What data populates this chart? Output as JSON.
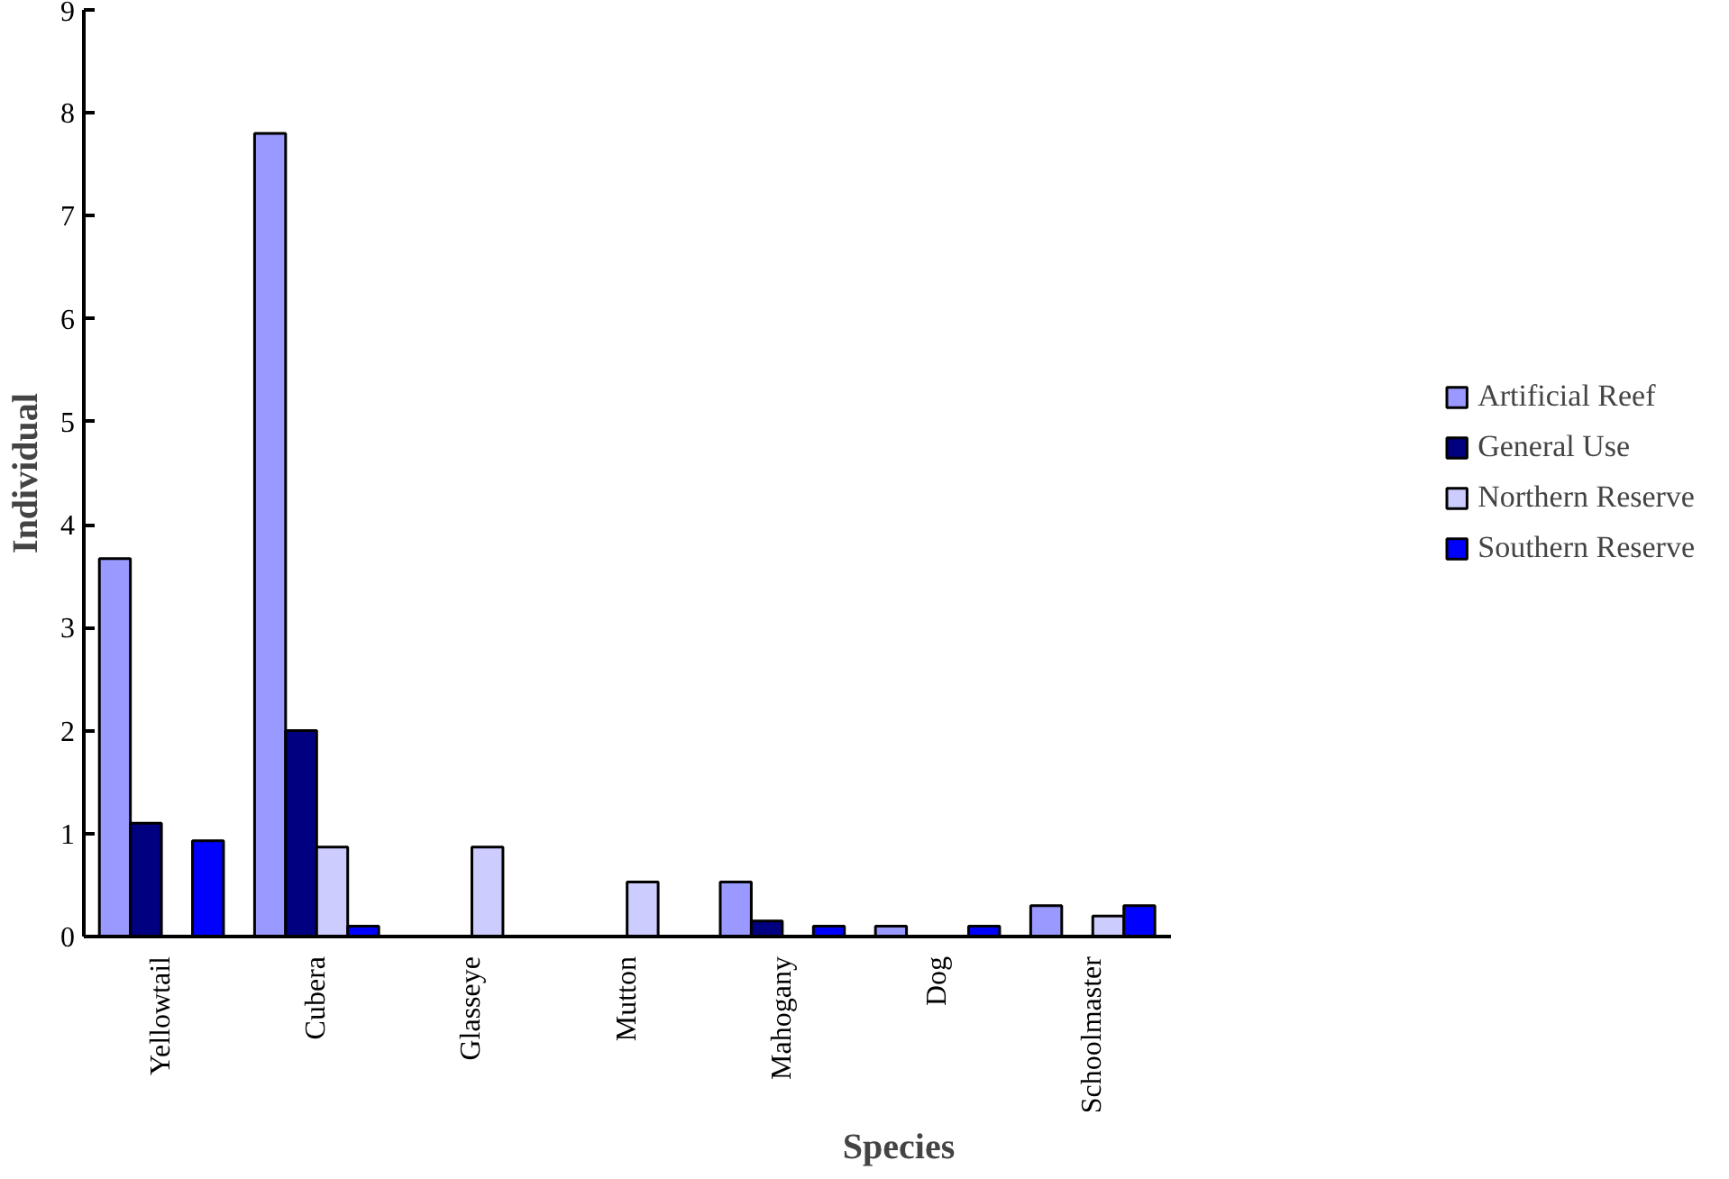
{
  "chart_data": {
    "type": "bar",
    "xlabel": "Species",
    "ylabel": "Individual",
    "categories": [
      "Yellowtail",
      "Cubera",
      "Glasseye",
      "Mutton",
      "Mahogany",
      "Dog",
      "Schoolmaster"
    ],
    "series": [
      {
        "name": "Artificial Reef",
        "color": "#9999ff",
        "values": [
          3.67,
          7.8,
          null,
          null,
          0.53,
          0.1,
          0.3
        ]
      },
      {
        "name": "General Use",
        "color": "#000080",
        "values": [
          1.1,
          2.0,
          null,
          null,
          0.15,
          null,
          null
        ]
      },
      {
        "name": "Northern Reserve",
        "color": "#ccccff",
        "values": [
          null,
          0.87,
          0.87,
          0.53,
          null,
          null,
          0.2
        ]
      },
      {
        "name": "Southern Reserve",
        "color": "#0000ff",
        "values": [
          0.93,
          0.1,
          null,
          null,
          0.1,
          0.1,
          0.3
        ]
      }
    ],
    "ylim": [
      0,
      9
    ],
    "yticks": [
      0,
      1,
      2,
      3,
      4,
      5,
      6,
      7,
      8,
      9
    ],
    "grid": false,
    "legend": "right"
  }
}
